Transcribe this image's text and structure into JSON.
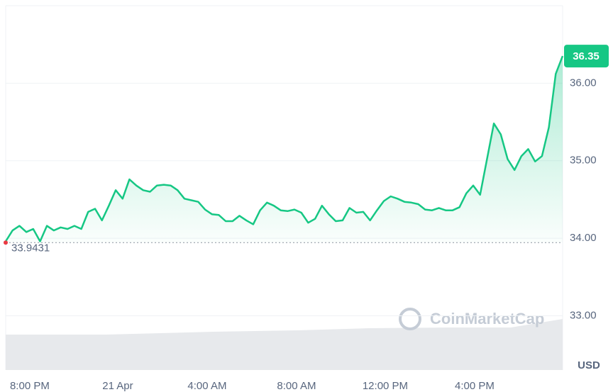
{
  "chart_data": {
    "type": "line",
    "series": [
      {
        "name": null,
        "color": "#16c784",
        "values": [
          33.96,
          34.1,
          34.16,
          34.08,
          34.12,
          33.96,
          34.16,
          34.1,
          34.14,
          34.12,
          34.16,
          34.12,
          34.34,
          34.38,
          34.23,
          34.42,
          34.62,
          34.51,
          34.76,
          34.68,
          34.62,
          34.6,
          34.68,
          34.69,
          34.68,
          34.62,
          34.51,
          34.49,
          34.47,
          34.37,
          34.31,
          34.3,
          34.22,
          34.22,
          34.29,
          34.23,
          34.18,
          34.36,
          34.46,
          34.42,
          34.36,
          34.35,
          34.37,
          34.33,
          34.2,
          34.25,
          34.42,
          34.31,
          34.22,
          34.23,
          34.39,
          34.33,
          34.34,
          34.23,
          34.36,
          34.48,
          34.54,
          34.51,
          34.47,
          34.46,
          34.44,
          34.37,
          34.36,
          34.39,
          34.36,
          34.36,
          34.4,
          34.58,
          34.68,
          34.56,
          35.02,
          35.48,
          35.34,
          35.02,
          34.88,
          35.06,
          35.15,
          34.99,
          35.06,
          35.43,
          36.12,
          36.35
        ]
      }
    ],
    "xlim": [
      0,
      81
    ],
    "xticks": [
      {
        "value": 3.5,
        "label": "8:00 PM"
      },
      {
        "value": 16.3,
        "label": "21 Apr"
      },
      {
        "value": 29.3,
        "label": "4:00 AM"
      },
      {
        "value": 42.3,
        "label": "8:00 AM"
      },
      {
        "value": 55.2,
        "label": "12:00 PM"
      },
      {
        "value": 68.2,
        "label": "4:00 PM"
      }
    ],
    "ylim": [
      32.3,
      37.0
    ],
    "yticks": [
      {
        "value": 33,
        "label": "33.00"
      },
      {
        "value": 34,
        "label": "34.00"
      },
      {
        "value": 35,
        "label": "35.00"
      },
      {
        "value": 36,
        "label": "36.00"
      }
    ],
    "y_label": "USD",
    "reference": 33.9431,
    "last_price": 36.35,
    "watermark": "CoinMarketCap",
    "grid": true
  }
}
